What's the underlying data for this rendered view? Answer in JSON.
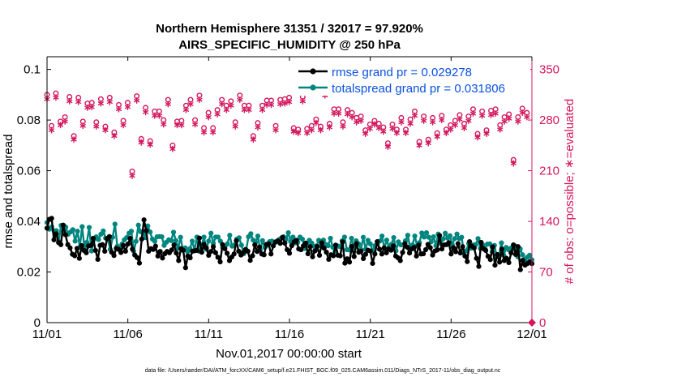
{
  "chart_data": {
    "type": "line",
    "title_line1": "Northern Hemisphere 31351 / 32017 = 97.920%",
    "title_line2": "AIRS_SPECIFIC_HUMIDITY @ 250 hPa",
    "xlabel": "Nov.01,2017 00:00:00 start",
    "ylabel_left": "rmse and totalspread",
    "ylabel_right": "# of obs: o=possible; ∗=evaluated",
    "footer": "data file: /Users/raeder/DAI/ATM_forcXX/CAM6_setup/f.e21.FHIST_BGC.f09_025.CAM6assim.011/Diags_NTrS_2017-11/obs_diag_output.nc",
    "xlim": [
      0,
      30
    ],
    "ylim_left": [
      0,
      0.105
    ],
    "ylim_right": [
      0,
      367.5
    ],
    "x_ticks": [
      0,
      5,
      10,
      15,
      20,
      25,
      30
    ],
    "x_tick_labels": [
      "11/01",
      "11/06",
      "11/11",
      "11/16",
      "11/21",
      "11/26",
      "12/01"
    ],
    "y_ticks_left": [
      0,
      0.02,
      0.04,
      0.06,
      0.08,
      0.1
    ],
    "y_tick_labels_left": [
      "0",
      "0.02",
      "0.04",
      "0.06",
      "0.08",
      "0.1"
    ],
    "y_ticks_right": [
      0,
      70,
      140,
      210,
      280,
      350
    ],
    "y_tick_labels_right": [
      "0",
      "70",
      "140",
      "210",
      "280",
      "350"
    ],
    "colors": {
      "rmse": "#000000",
      "spread": "#00857f",
      "obs": "#d3175e",
      "legend_text": "#0a50e0"
    },
    "series": [
      {
        "name": "rmse grand pr = 0.029278",
        "axis": "left",
        "values": [
          0.0373,
          0.0408,
          0.0412,
          0.0327,
          0.0351,
          0.0316,
          0.0308,
          0.0385,
          0.0347,
          0.0308,
          0.0295,
          0.027,
          0.0264,
          0.0293,
          0.0254,
          0.0304,
          0.0285,
          0.0276,
          0.0303,
          0.0305,
          0.0333,
          0.0285,
          0.025,
          0.0305,
          0.0308,
          0.0282,
          0.0332,
          0.034,
          0.0278,
          0.0265,
          0.0293,
          0.0289,
          0.0277,
          0.0305,
          0.0282,
          0.031,
          0.0333,
          0.029,
          0.0267,
          0.0257,
          0.0235,
          0.033,
          0.0406,
          0.0363,
          0.0282,
          0.0292,
          0.0289,
          0.0302,
          0.0263,
          0.0281,
          0.0255,
          0.0272,
          0.0281,
          0.0276,
          0.0287,
          0.0307,
          0.0275,
          0.0245,
          0.0292,
          0.0286,
          0.0217,
          0.0263,
          0.0256,
          0.0282,
          0.0284,
          0.0285,
          0.0334,
          0.0278,
          0.0309,
          0.0295,
          0.0266,
          0.0281,
          0.03,
          0.0276,
          0.0258,
          0.024,
          0.0308,
          0.0292,
          0.0274,
          0.0245,
          0.0259,
          0.0271,
          0.0323,
          0.0282,
          0.0267,
          0.0277,
          0.0289,
          0.0282,
          0.0246,
          0.0264,
          0.0307,
          0.0281,
          0.0298,
          0.0271,
          0.0268,
          0.0309,
          0.0311,
          0.0271,
          0.0303,
          0.0319,
          0.0323,
          0.0313,
          0.0337,
          0.0314,
          0.0288,
          0.0274,
          0.0304,
          0.0319,
          0.0325,
          0.0291,
          0.0288,
          0.0303,
          0.0314,
          0.0272,
          0.03,
          0.026,
          0.0283,
          0.0301,
          0.0266,
          0.0315,
          0.0294,
          0.0278,
          0.025,
          0.0268,
          0.0264,
          0.0306,
          0.0266,
          0.0264,
          0.0319,
          0.0235,
          0.0252,
          0.0239,
          0.0301,
          0.0261,
          0.0312,
          0.0278,
          0.0282,
          0.0253,
          0.027,
          0.0286,
          0.0283,
          0.0234,
          0.0271,
          0.032,
          0.029,
          0.0271,
          0.0295,
          0.0276,
          0.0291,
          0.0286,
          0.0303,
          0.0263,
          0.0256,
          0.0245,
          0.0277,
          0.0312,
          0.0298,
          0.0275,
          0.0291,
          0.0297,
          0.0263,
          0.0306,
          0.0271,
          0.0272,
          0.0288,
          0.0309,
          0.0296,
          0.0267,
          0.0283,
          0.0287,
          0.0344,
          0.0291,
          0.0307,
          0.0308,
          0.0316,
          0.0271,
          0.0296,
          0.028,
          0.0312,
          0.0275,
          0.03,
          0.0263,
          0.0241,
          0.032,
          0.0302,
          0.0295,
          0.0254,
          0.0222,
          0.0317,
          0.0292,
          0.0285,
          0.0262,
          0.0249,
          0.0299,
          0.0227,
          0.0269,
          0.0239,
          0.029,
          0.0245,
          0.0254,
          0.0237,
          0.0275,
          0.0307,
          0.0269,
          0.03,
          0.0209,
          0.0246,
          0.0227,
          0.0233,
          0.024,
          0.0233
        ]
      },
      {
        "name": "totalspread grand pr = 0.031806",
        "axis": "left",
        "values": [
          0.0395,
          0.0369,
          0.0378,
          0.0363,
          0.0363,
          0.032,
          0.0384,
          0.036,
          0.0377,
          0.0349,
          0.0358,
          0.0367,
          0.0322,
          0.0361,
          0.0298,
          0.0379,
          0.0293,
          0.0317,
          0.0376,
          0.0283,
          0.0328,
          0.0339,
          0.0328,
          0.0349,
          0.0362,
          0.0334,
          0.0328,
          0.0289,
          0.0337,
          0.0389,
          0.0302,
          0.0295,
          0.031,
          0.0327,
          0.0336,
          0.0353,
          0.0361,
          0.0282,
          0.0321,
          0.0385,
          0.0359,
          0.0355,
          0.0336,
          0.0382,
          0.0358,
          0.033,
          0.0321,
          0.0339,
          0.034,
          0.0339,
          0.0305,
          0.0318,
          0.0327,
          0.0324,
          0.0357,
          0.0324,
          0.0294,
          0.0337,
          0.0286,
          0.0295,
          0.028,
          0.0292,
          0.0322,
          0.0285,
          0.0338,
          0.0282,
          0.0306,
          0.0338,
          0.029,
          0.0322,
          0.0353,
          0.0313,
          0.0338,
          0.0338,
          0.0322,
          0.0296,
          0.0301,
          0.0311,
          0.0345,
          0.0302,
          0.0306,
          0.033,
          0.0335,
          0.0306,
          0.0272,
          0.0286,
          0.0339,
          0.0351,
          0.0326,
          0.0317,
          0.0342,
          0.0287,
          0.0324,
          0.0297,
          0.0305,
          0.032,
          0.0322,
          0.0314,
          0.0319,
          0.0328,
          0.0334,
          0.0339,
          0.0329,
          0.0355,
          0.032,
          0.0338,
          0.0315,
          0.0317,
          0.0338,
          0.033,
          0.0293,
          0.0306,
          0.0325,
          0.0314,
          0.0301,
          0.0303,
          0.0325,
          0.0303,
          0.0326,
          0.0309,
          0.0304,
          0.0333,
          0.0298,
          0.0281,
          0.0303,
          0.03,
          0.0323,
          0.0338,
          0.0288,
          0.0287,
          0.0333,
          0.0296,
          0.0323,
          0.0311,
          0.0288,
          0.0337,
          0.029,
          0.0325,
          0.0311,
          0.0283,
          0.0304,
          0.031,
          0.0322,
          0.0342,
          0.0294,
          0.0326,
          0.0297,
          0.0309,
          0.0336,
          0.0284,
          0.0319,
          0.0307,
          0.0307,
          0.0323,
          0.0345,
          0.0296,
          0.0307,
          0.0342,
          0.0303,
          0.0316,
          0.0354,
          0.0338,
          0.0355,
          0.0337,
          0.0319,
          0.0339,
          0.0304,
          0.035,
          0.0313,
          0.033,
          0.0353,
          0.0334,
          0.0343,
          0.0308,
          0.0332,
          0.035,
          0.0332,
          0.0337,
          0.0274,
          0.0284,
          0.0312,
          0.0294,
          0.0307,
          0.0308,
          0.0332,
          0.0293,
          0.0307,
          0.0292,
          0.031,
          0.0311,
          0.028,
          0.0305,
          0.026,
          0.0269,
          0.0315,
          0.0265,
          0.0297,
          0.0288,
          0.0294,
          0.029,
          0.0302,
          0.026,
          0.0291,
          0.0268,
          0.0247,
          0.0258,
          0.0266,
          0.0248
        ]
      },
      {
        "name": "possible",
        "axis": "right",
        "marker": "o",
        "x": [
          0,
          0.28,
          0.55,
          0.83,
          1.11,
          1.39,
          1.66,
          1.94,
          2.22,
          2.5,
          2.77,
          3.05,
          3.33,
          3.61,
          3.88,
          4.16,
          4.44,
          4.72,
          4.99,
          5.27,
          5.55,
          5.83,
          6.1,
          6.38,
          6.66,
          6.94,
          7.21,
          7.49,
          7.77,
          8.05,
          8.32,
          8.6,
          8.88,
          9.16,
          9.43,
          9.71,
          9.99,
          10.27,
          10.54,
          10.82,
          11.1,
          11.38,
          11.65,
          11.93,
          12.21,
          12.49,
          12.76,
          13.04,
          13.32,
          13.6,
          13.87,
          14.15,
          14.43,
          14.71,
          14.98,
          15.26,
          15.54,
          15.82,
          16.09,
          16.37,
          16.65,
          16.93,
          17.2,
          17.48,
          17.76,
          18.04,
          18.31,
          18.59,
          18.87,
          19.15,
          19.42,
          19.7,
          19.98,
          20.26,
          20.53,
          20.81,
          21.09,
          21.37,
          21.64,
          21.92,
          22.2,
          22.48,
          22.75,
          23.03,
          23.31,
          23.59,
          23.86,
          24.14,
          24.42,
          24.7,
          24.97,
          25.25,
          25.53,
          25.81,
          26.08,
          26.36,
          26.64,
          26.92,
          27.19,
          27.47,
          27.75,
          28.03,
          28.3,
          28.58,
          28.86,
          29.14,
          29.41,
          29.69
        ],
        "values": [
          315,
          272,
          317,
          278,
          284,
          312,
          258,
          311,
          278,
          303,
          304,
          277,
          309,
          271,
          311,
          263,
          301,
          279,
          304,
          209,
          313,
          254,
          297,
          251,
          292,
          292,
          280,
          308,
          245,
          278,
          279,
          300,
          308,
          280,
          314,
          269,
          290,
          269,
          294,
          308,
          300,
          306,
          277,
          314,
          300,
          300,
          258,
          276,
          300,
          307,
          307,
          272,
          308,
          309,
          311,
          269,
          267,
          312,
          268,
          272,
          281,
          271,
          320,
          275,
          295,
          295,
          277,
          294,
          290,
          283,
          285,
          266,
          274,
          279,
          275,
          270,
          248,
          274,
          267,
          283,
          267,
          281,
          292,
          250,
          285,
          253,
          283,
          262,
          286,
          267,
          273,
          279,
          287,
          275,
          285,
          295,
          261,
          292,
          266,
          293,
          295,
          273,
          284,
          288,
          225,
          284,
          296,
          290
        ]
      },
      {
        "name": "evaluated",
        "axis": "right",
        "marker": "*",
        "x": [
          0,
          0.28,
          0.55,
          0.83,
          1.11,
          1.39,
          1.66,
          1.94,
          2.22,
          2.5,
          2.77,
          3.05,
          3.33,
          3.61,
          3.88,
          4.16,
          4.44,
          4.72,
          4.99,
          5.27,
          5.55,
          5.83,
          6.1,
          6.38,
          6.66,
          6.94,
          7.21,
          7.49,
          7.77,
          8.05,
          8.32,
          8.6,
          8.88,
          9.16,
          9.43,
          9.71,
          9.99,
          10.27,
          10.54,
          10.82,
          11.1,
          11.38,
          11.65,
          11.93,
          12.21,
          12.49,
          12.76,
          13.04,
          13.32,
          13.6,
          13.87,
          14.15,
          14.43,
          14.71,
          14.98,
          15.26,
          15.54,
          15.82,
          16.09,
          16.37,
          16.65,
          16.93,
          17.2,
          17.48,
          17.76,
          18.04,
          18.31,
          18.59,
          18.87,
          19.15,
          19.42,
          19.7,
          19.98,
          20.26,
          20.53,
          20.81,
          21.09,
          21.37,
          21.64,
          21.92,
          22.2,
          22.48,
          22.75,
          23.03,
          23.31,
          23.59,
          23.86,
          24.14,
          24.42,
          24.7,
          24.97,
          25.25,
          25.53,
          25.81,
          26.08,
          26.36,
          26.64,
          26.92,
          27.19,
          27.47,
          27.75,
          28.03,
          28.3,
          28.58,
          28.86,
          29.14,
          29.41,
          29.69
        ],
        "values": [
          309,
          266,
          311,
          273,
          278,
          306,
          253,
          305,
          272,
          297,
          298,
          271,
          303,
          266,
          305,
          258,
          295,
          273,
          298,
          203,
          307,
          249,
          291,
          246,
          286,
          286,
          274,
          302,
          240,
          273,
          273,
          294,
          302,
          274,
          308,
          263,
          284,
          263,
          288,
          302,
          294,
          300,
          271,
          308,
          294,
          294,
          253,
          270,
          294,
          301,
          301,
          266,
          302,
          303,
          305,
          264,
          262,
          306,
          262,
          266,
          276,
          266,
          314,
          270,
          289,
          289,
          271,
          288,
          284,
          277,
          279,
          261,
          268,
          274,
          269,
          264,
          243,
          268,
          262,
          277,
          262,
          275,
          286,
          245,
          279,
          248,
          277,
          257,
          280,
          262,
          267,
          273,
          281,
          269,
          279,
          289,
          256,
          286,
          261,
          287,
          289,
          267,
          278,
          282,
          220,
          278,
          290,
          284
        ]
      }
    ]
  }
}
